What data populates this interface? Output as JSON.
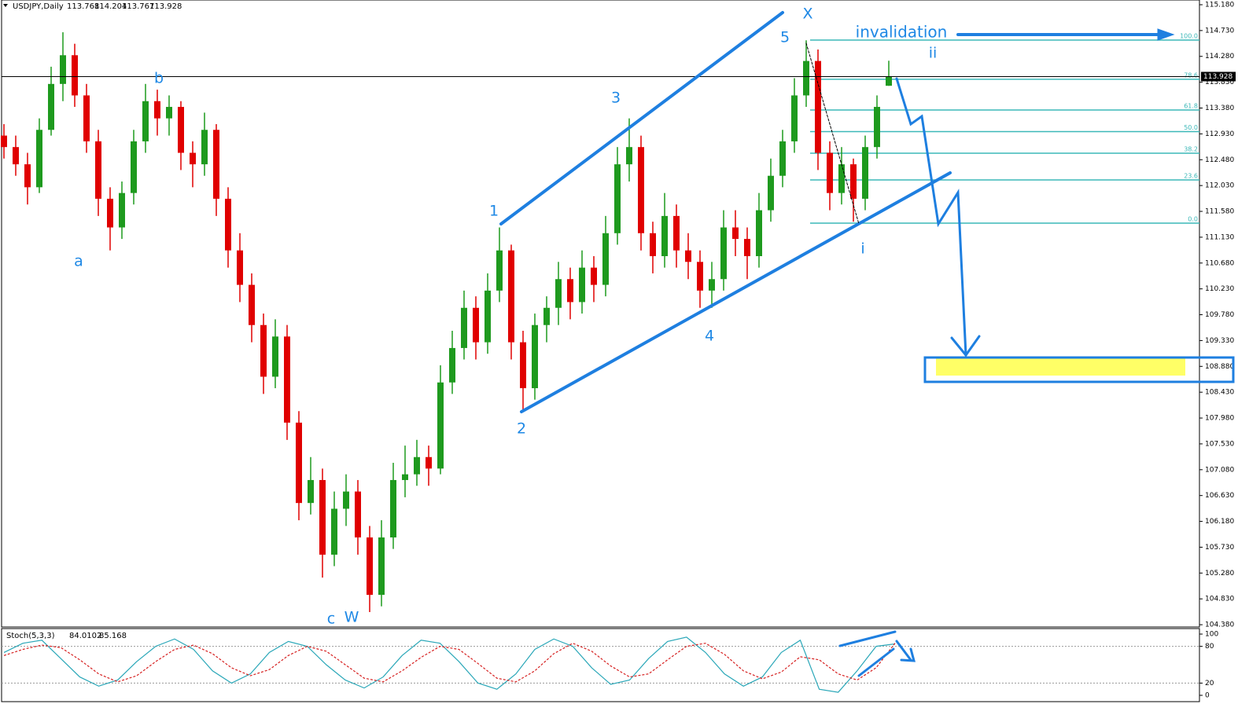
{
  "chart_data": [
    {
      "type": "candlestick",
      "symbol": "USDJPY,Daily",
      "bull_color": "#1e9a1e",
      "bear_color": "#e00000",
      "candles": [
        [
          112.9,
          113.1,
          112.5,
          112.7
        ],
        [
          112.7,
          112.9,
          112.2,
          112.4
        ],
        [
          112.4,
          112.6,
          111.7,
          112.0
        ],
        [
          112.0,
          113.2,
          111.9,
          113.0
        ],
        [
          113.0,
          114.1,
          112.9,
          113.8
        ],
        [
          113.8,
          114.7,
          113.5,
          114.3
        ],
        [
          114.3,
          114.5,
          113.4,
          113.6
        ],
        [
          113.6,
          113.8,
          112.6,
          112.8
        ],
        [
          112.8,
          113.0,
          111.5,
          111.8
        ],
        [
          111.8,
          112.0,
          110.9,
          111.3
        ],
        [
          111.3,
          112.1,
          111.1,
          111.9
        ],
        [
          111.9,
          113.0,
          111.7,
          112.8
        ],
        [
          112.8,
          113.8,
          112.6,
          113.5
        ],
        [
          113.5,
          113.7,
          112.9,
          113.2
        ],
        [
          113.2,
          113.6,
          112.9,
          113.4
        ],
        [
          113.4,
          113.5,
          112.3,
          112.6
        ],
        [
          112.6,
          112.8,
          112.0,
          112.4
        ],
        [
          112.4,
          113.3,
          112.2,
          113.0
        ],
        [
          113.0,
          113.1,
          111.5,
          111.8
        ],
        [
          111.8,
          112.0,
          110.6,
          110.9
        ],
        [
          110.9,
          111.2,
          110.0,
          110.3
        ],
        [
          110.3,
          110.5,
          109.3,
          109.6
        ],
        [
          109.6,
          109.8,
          108.4,
          108.7
        ],
        [
          108.7,
          109.7,
          108.5,
          109.4
        ],
        [
          109.4,
          109.6,
          107.6,
          107.9
        ],
        [
          107.9,
          108.1,
          106.2,
          106.5
        ],
        [
          106.5,
          107.3,
          106.3,
          106.9
        ],
        [
          106.9,
          107.1,
          105.2,
          105.6
        ],
        [
          105.6,
          106.7,
          105.4,
          106.4
        ],
        [
          106.4,
          107.0,
          106.1,
          106.7
        ],
        [
          106.7,
          106.9,
          105.6,
          105.9
        ],
        [
          105.9,
          106.1,
          104.6,
          104.9
        ],
        [
          104.9,
          106.2,
          104.7,
          105.9
        ],
        [
          105.9,
          107.2,
          105.7,
          106.9
        ],
        [
          106.9,
          107.5,
          106.6,
          107.0
        ],
        [
          107.0,
          107.6,
          106.8,
          107.3
        ],
        [
          107.3,
          107.5,
          106.8,
          107.1
        ],
        [
          107.1,
          108.9,
          107.0,
          108.6
        ],
        [
          108.6,
          109.5,
          108.4,
          109.2
        ],
        [
          109.2,
          110.2,
          109.0,
          109.9
        ],
        [
          109.9,
          110.1,
          109.0,
          109.3
        ],
        [
          109.3,
          110.5,
          109.1,
          110.2
        ],
        [
          110.2,
          111.3,
          110.0,
          110.9
        ],
        [
          110.9,
          111.0,
          109.0,
          109.3
        ],
        [
          109.3,
          109.5,
          108.1,
          108.5
        ],
        [
          108.5,
          109.8,
          108.3,
          109.6
        ],
        [
          109.6,
          110.1,
          109.3,
          109.9
        ],
        [
          109.9,
          110.7,
          109.6,
          110.4
        ],
        [
          110.4,
          110.6,
          109.7,
          110.0
        ],
        [
          110.0,
          110.9,
          109.8,
          110.6
        ],
        [
          110.6,
          110.8,
          110.0,
          110.3
        ],
        [
          110.3,
          111.5,
          110.1,
          111.2
        ],
        [
          111.2,
          112.7,
          111.0,
          112.4
        ],
        [
          112.4,
          113.2,
          112.1,
          112.7
        ],
        [
          112.7,
          112.9,
          110.9,
          111.2
        ],
        [
          111.2,
          111.4,
          110.5,
          110.8
        ],
        [
          110.8,
          111.9,
          110.6,
          111.5
        ],
        [
          111.5,
          111.7,
          110.6,
          110.9
        ],
        [
          110.9,
          111.2,
          110.4,
          110.7
        ],
        [
          110.7,
          110.9,
          109.9,
          110.2
        ],
        [
          110.2,
          110.7,
          109.9,
          110.4
        ],
        [
          110.4,
          111.6,
          110.2,
          111.3
        ],
        [
          111.3,
          111.6,
          110.8,
          111.1
        ],
        [
          111.1,
          111.3,
          110.4,
          110.8
        ],
        [
          110.8,
          111.9,
          110.6,
          111.6
        ],
        [
          111.6,
          112.5,
          111.4,
          112.2
        ],
        [
          112.2,
          113.0,
          112.0,
          112.8
        ],
        [
          112.8,
          113.9,
          112.6,
          113.6
        ],
        [
          113.6,
          114.56,
          113.4,
          114.2
        ],
        [
          114.2,
          114.4,
          112.3,
          112.6
        ],
        [
          112.6,
          112.8,
          111.6,
          111.9
        ],
        [
          111.9,
          112.7,
          111.7,
          112.4
        ],
        [
          112.4,
          112.5,
          111.4,
          111.8
        ],
        [
          111.8,
          112.9,
          111.6,
          112.7
        ],
        [
          112.7,
          113.6,
          112.5,
          113.4
        ],
        [
          113.768,
          114.204,
          113.767,
          113.928
        ]
      ],
      "ylim": [
        104.34,
        115.262
      ],
      "yticks": [
        {
          "value": 115.18,
          "label": "115.180"
        },
        {
          "value": 114.73,
          "label": "114.730"
        },
        {
          "value": 114.28,
          "label": "114.280"
        },
        {
          "value": 113.83,
          "label": "113.830"
        },
        {
          "value": 113.38,
          "label": "113.380"
        },
        {
          "value": 112.93,
          "label": "112.930"
        },
        {
          "value": 112.48,
          "label": "112.480"
        },
        {
          "value": 112.03,
          "label": "112.030"
        },
        {
          "value": 111.58,
          "label": "111.580"
        },
        {
          "value": 111.13,
          "label": "111.130"
        },
        {
          "value": 110.68,
          "label": "110.680"
        },
        {
          "value": 110.23,
          "label": "110.230"
        },
        {
          "value": 109.78,
          "label": "109.780"
        },
        {
          "value": 109.33,
          "label": "109.330"
        },
        {
          "value": 108.88,
          "label": "108.880"
        },
        {
          "value": 108.43,
          "label": "108.430"
        },
        {
          "value": 107.98,
          "label": "107.980"
        },
        {
          "value": 107.53,
          "label": "107.530"
        },
        {
          "value": 107.08,
          "label": "107.080"
        },
        {
          "value": 106.63,
          "label": "106.630"
        },
        {
          "value": 106.18,
          "label": "106.180"
        },
        {
          "value": 105.73,
          "label": "105.730"
        },
        {
          "value": 105.28,
          "label": "105.280"
        },
        {
          "value": 104.83,
          "label": "104.830"
        },
        {
          "value": 104.38,
          "label": "104.380"
        }
      ],
      "fibonacci": {
        "low": 111.375,
        "high": 114.564,
        "color": "#3cb8b8",
        "levels": [
          {
            "value": 100,
            "label": "100.0"
          },
          {
            "value": 78.6,
            "label": "78.6"
          },
          {
            "value": 61.8,
            "label": "61.8"
          },
          {
            "value": 50,
            "label": "50.0"
          },
          {
            "value": 38.2,
            "label": "38.2"
          },
          {
            "value": 23.6,
            "label": "23.6"
          },
          {
            "value": 0,
            "label": "0.0"
          }
        ]
      },
      "wave_labels": [
        "a",
        "b",
        "c",
        "W",
        "1",
        "2",
        "3",
        "4",
        "5",
        "X",
        "i",
        "ii"
      ],
      "annotation": "invalidation"
    },
    {
      "type": "line",
      "name": "Stoch(5,3,3)",
      "ylim": [
        -10.3,
        109
      ],
      "yticks": [
        100,
        80,
        20,
        0
      ],
      "series": [
        {
          "name": "main",
          "color": "#2aa7b8",
          "values": [
            70,
            85,
            90,
            60,
            30,
            15,
            25,
            55,
            80,
            92,
            75,
            40,
            20,
            35,
            70,
            88,
            80,
            50,
            25,
            12,
            30,
            65,
            90,
            85,
            55,
            20,
            10,
            35,
            75,
            92,
            80,
            45,
            18,
            25,
            60,
            88,
            95,
            70,
            35,
            15,
            30,
            70,
            90,
            10,
            5,
            40,
            80,
            84.0102
          ]
        },
        {
          "name": "signal",
          "color": "#d62020",
          "values": [
            65,
            75,
            82,
            78,
            58,
            35,
            22,
            32,
            55,
            75,
            82,
            68,
            45,
            32,
            42,
            65,
            80,
            72,
            50,
            28,
            22,
            40,
            62,
            80,
            75,
            52,
            28,
            22,
            40,
            68,
            85,
            72,
            48,
            30,
            35,
            58,
            80,
            85,
            67,
            40,
            27,
            38,
            63,
            58,
            35,
            25,
            45,
            85.168
          ]
        }
      ]
    }
  ]
}
